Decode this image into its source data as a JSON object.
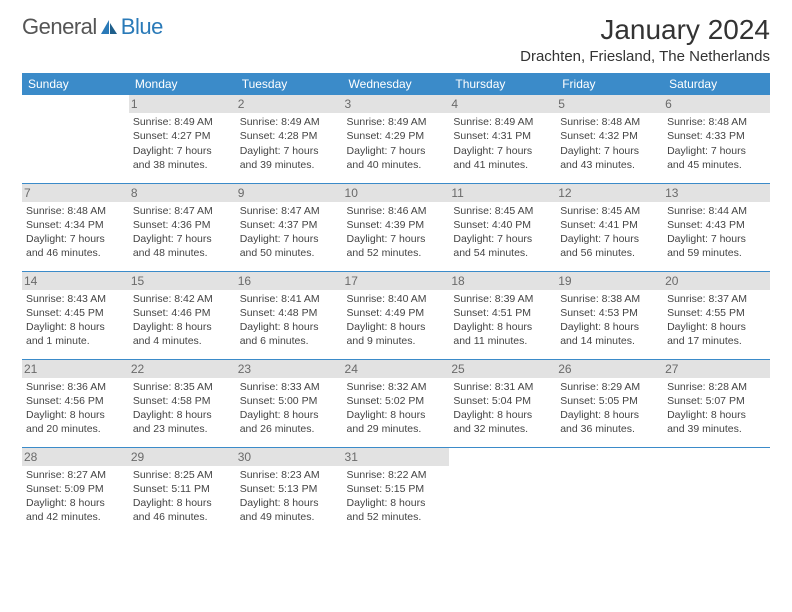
{
  "logo": {
    "gray": "General",
    "blue": "Blue"
  },
  "title": "January 2024",
  "location": "Drachten, Friesland, The Netherlands",
  "header_bg": "#3b8bc9",
  "divider_color": "#3b8bc9",
  "daynum_bg": "#e2e2e2",
  "day_headers": [
    "Sunday",
    "Monday",
    "Tuesday",
    "Wednesday",
    "Thursday",
    "Friday",
    "Saturday"
  ],
  "weeks": [
    [
      null,
      {
        "n": "1",
        "sr": "8:49 AM",
        "ss": "4:27 PM",
        "dl": "7 hours and 38 minutes."
      },
      {
        "n": "2",
        "sr": "8:49 AM",
        "ss": "4:28 PM",
        "dl": "7 hours and 39 minutes."
      },
      {
        "n": "3",
        "sr": "8:49 AM",
        "ss": "4:29 PM",
        "dl": "7 hours and 40 minutes."
      },
      {
        "n": "4",
        "sr": "8:49 AM",
        "ss": "4:31 PM",
        "dl": "7 hours and 41 minutes."
      },
      {
        "n": "5",
        "sr": "8:48 AM",
        "ss": "4:32 PM",
        "dl": "7 hours and 43 minutes."
      },
      {
        "n": "6",
        "sr": "8:48 AM",
        "ss": "4:33 PM",
        "dl": "7 hours and 45 minutes."
      }
    ],
    [
      {
        "n": "7",
        "sr": "8:48 AM",
        "ss": "4:34 PM",
        "dl": "7 hours and 46 minutes."
      },
      {
        "n": "8",
        "sr": "8:47 AM",
        "ss": "4:36 PM",
        "dl": "7 hours and 48 minutes."
      },
      {
        "n": "9",
        "sr": "8:47 AM",
        "ss": "4:37 PM",
        "dl": "7 hours and 50 minutes."
      },
      {
        "n": "10",
        "sr": "8:46 AM",
        "ss": "4:39 PM",
        "dl": "7 hours and 52 minutes."
      },
      {
        "n": "11",
        "sr": "8:45 AM",
        "ss": "4:40 PM",
        "dl": "7 hours and 54 minutes."
      },
      {
        "n": "12",
        "sr": "8:45 AM",
        "ss": "4:41 PM",
        "dl": "7 hours and 56 minutes."
      },
      {
        "n": "13",
        "sr": "8:44 AM",
        "ss": "4:43 PM",
        "dl": "7 hours and 59 minutes."
      }
    ],
    [
      {
        "n": "14",
        "sr": "8:43 AM",
        "ss": "4:45 PM",
        "dl": "8 hours and 1 minute."
      },
      {
        "n": "15",
        "sr": "8:42 AM",
        "ss": "4:46 PM",
        "dl": "8 hours and 4 minutes."
      },
      {
        "n": "16",
        "sr": "8:41 AM",
        "ss": "4:48 PM",
        "dl": "8 hours and 6 minutes."
      },
      {
        "n": "17",
        "sr": "8:40 AM",
        "ss": "4:49 PM",
        "dl": "8 hours and 9 minutes."
      },
      {
        "n": "18",
        "sr": "8:39 AM",
        "ss": "4:51 PM",
        "dl": "8 hours and 11 minutes."
      },
      {
        "n": "19",
        "sr": "8:38 AM",
        "ss": "4:53 PM",
        "dl": "8 hours and 14 minutes."
      },
      {
        "n": "20",
        "sr": "8:37 AM",
        "ss": "4:55 PM",
        "dl": "8 hours and 17 minutes."
      }
    ],
    [
      {
        "n": "21",
        "sr": "8:36 AM",
        "ss": "4:56 PM",
        "dl": "8 hours and 20 minutes."
      },
      {
        "n": "22",
        "sr": "8:35 AM",
        "ss": "4:58 PM",
        "dl": "8 hours and 23 minutes."
      },
      {
        "n": "23",
        "sr": "8:33 AM",
        "ss": "5:00 PM",
        "dl": "8 hours and 26 minutes."
      },
      {
        "n": "24",
        "sr": "8:32 AM",
        "ss": "5:02 PM",
        "dl": "8 hours and 29 minutes."
      },
      {
        "n": "25",
        "sr": "8:31 AM",
        "ss": "5:04 PM",
        "dl": "8 hours and 32 minutes."
      },
      {
        "n": "26",
        "sr": "8:29 AM",
        "ss": "5:05 PM",
        "dl": "8 hours and 36 minutes."
      },
      {
        "n": "27",
        "sr": "8:28 AM",
        "ss": "5:07 PM",
        "dl": "8 hours and 39 minutes."
      }
    ],
    [
      {
        "n": "28",
        "sr": "8:27 AM",
        "ss": "5:09 PM",
        "dl": "8 hours and 42 minutes."
      },
      {
        "n": "29",
        "sr": "8:25 AM",
        "ss": "5:11 PM",
        "dl": "8 hours and 46 minutes."
      },
      {
        "n": "30",
        "sr": "8:23 AM",
        "ss": "5:13 PM",
        "dl": "8 hours and 49 minutes."
      },
      {
        "n": "31",
        "sr": "8:22 AM",
        "ss": "5:15 PM",
        "dl": "8 hours and 52 minutes."
      },
      null,
      null,
      null
    ]
  ],
  "labels": {
    "sunrise": "Sunrise:",
    "sunset": "Sunset:",
    "daylight": "Daylight:"
  }
}
